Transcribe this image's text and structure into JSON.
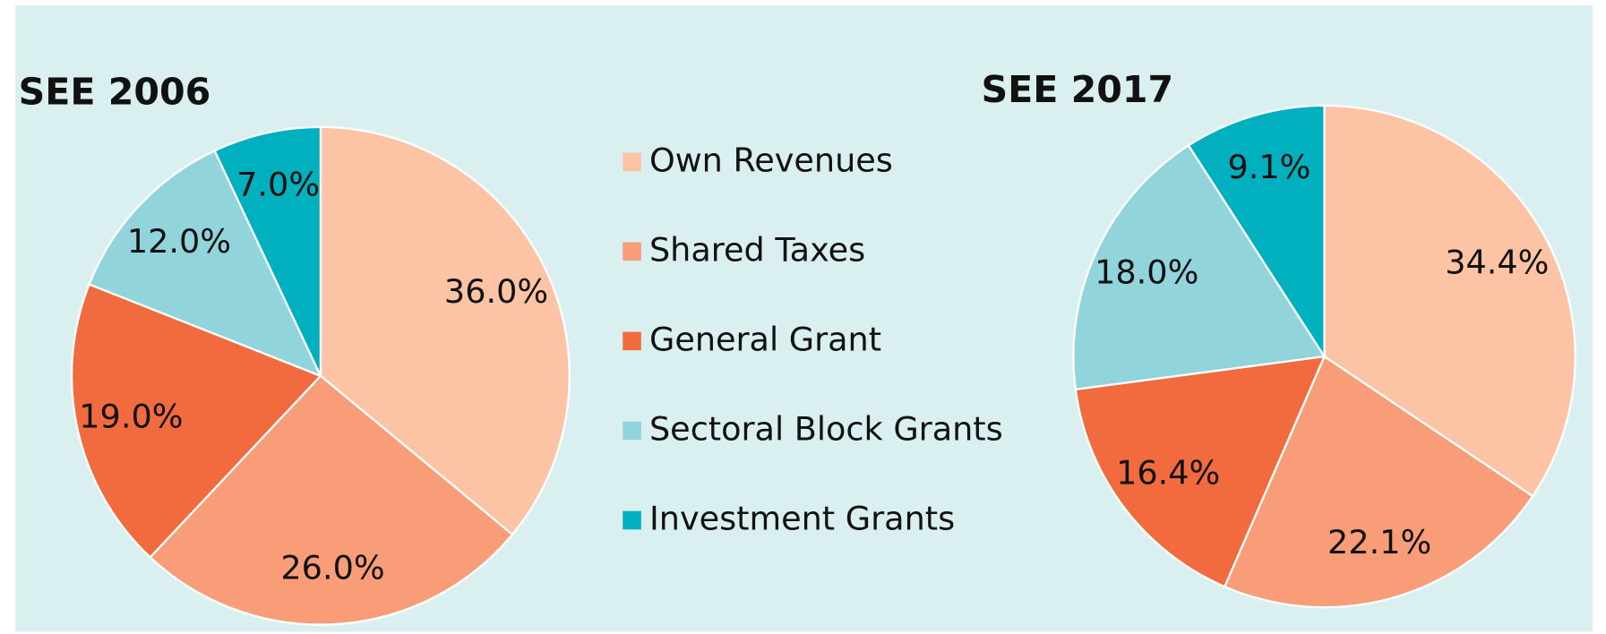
{
  "chart_data": [
    {
      "type": "pie",
      "title": "SEE 2006",
      "categories": [
        "Own Revenues",
        "Shared Taxes",
        "General Grant",
        "Sectoral Block Grants",
        "Investment Grants"
      ],
      "values": [
        36,
        26,
        19,
        12,
        7
      ],
      "value_labels": [
        "36.0%",
        "26.0%",
        "19.0%",
        "12.0%",
        "7.0%"
      ],
      "colors": [
        "#fdc3a5",
        "#f89d78",
        "#f26b3e",
        "#92d4db",
        "#00b0bf"
      ]
    },
    {
      "type": "pie",
      "title": "SEE 2017",
      "categories": [
        "Own Revenues",
        "Shared Taxes",
        "General Grant",
        "Sectoral Block Grants",
        "Investment Grants"
      ],
      "values": [
        34.4,
        22.1,
        16.4,
        18.0,
        9.1
      ],
      "value_labels": [
        "34.4%",
        "22.1%",
        "16.4%",
        "18.0%",
        "9.1%"
      ],
      "colors": [
        "#fdc3a5",
        "#f89d78",
        "#f26b3e",
        "#92d4db",
        "#00b0bf"
      ]
    }
  ]
}
